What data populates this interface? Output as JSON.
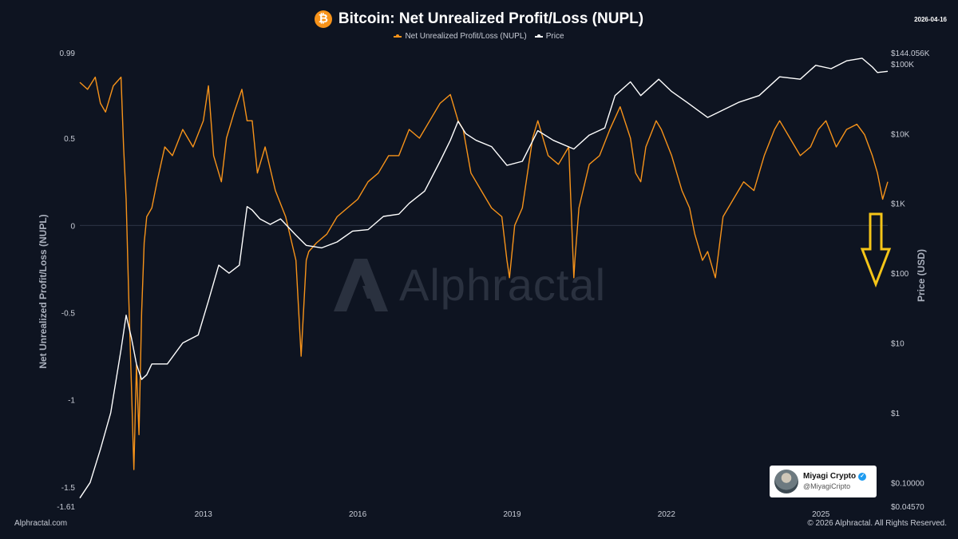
{
  "header": {
    "title": "Bitcoin: Net Unrealized Profit/Loss (NUPL)",
    "icon": "bitcoin-icon",
    "icon_glyph": "₿",
    "date": "2026-04-16"
  },
  "legend": [
    {
      "label": "Net Unrealized Profit/Loss (NUPL)",
      "color": "#f7931a"
    },
    {
      "label": "Price",
      "color": "#ffffff"
    }
  ],
  "watermark": {
    "text": "Alphractal"
  },
  "badge": {
    "name": "Miyagi Crypto",
    "handle": "@MiyagiCripto",
    "verified_icon": "check-icon"
  },
  "footer": {
    "left": "Alphractal.com",
    "right": "© 2026 Alphractal. All Rights Reserved."
  },
  "annotation": {
    "icon": "down-arrow-icon",
    "color": "#f5c518"
  },
  "chart_data": {
    "type": "line",
    "title": "Bitcoin: Net Unrealized Profit/Loss (NUPL)",
    "xlabel": "",
    "ylabel": "Net Unrealized Profit/Loss (NUPL)",
    "y2label": "Price (USD)",
    "xlim": [
      2010.6,
      2026.3
    ],
    "ylim": [
      -1.61,
      0.99
    ],
    "y2_scale": "log",
    "y2lim": [
      0.0457,
      144056
    ],
    "x_ticks": [
      2013,
      2016,
      2019,
      2022,
      2025
    ],
    "y_ticks": [
      {
        "value": 0.99,
        "label": "0.99"
      },
      {
        "value": 0.5,
        "label": "0.5"
      },
      {
        "value": 0,
        "label": "0"
      },
      {
        "value": -0.5,
        "label": "-0.5"
      },
      {
        "value": -1,
        "label": "-1"
      },
      {
        "value": -1.5,
        "label": "-1.5"
      },
      {
        "value": -1.61,
        "label": "-1.61"
      }
    ],
    "y2_ticks": [
      {
        "value": 144056,
        "label": "$144.056K"
      },
      {
        "value": 100000,
        "label": "$100K"
      },
      {
        "value": 10000,
        "label": "$10K"
      },
      {
        "value": 1000,
        "label": "$1K"
      },
      {
        "value": 100,
        "label": "$100"
      },
      {
        "value": 10,
        "label": "$10"
      },
      {
        "value": 1,
        "label": "$1"
      },
      {
        "value": 0.1,
        "label": "$0.10000"
      },
      {
        "value": 0.0457,
        "label": "$0.04570"
      }
    ],
    "grid": false,
    "legend_position": "top-center",
    "series": [
      {
        "name": "Net Unrealized Profit/Loss (NUPL)",
        "color": "#f7931a",
        "axis": "left",
        "x": [
          2010.6,
          2010.75,
          2010.9,
          2011.0,
          2011.1,
          2011.25,
          2011.4,
          2011.45,
          2011.5,
          2011.55,
          2011.6,
          2011.65,
          2011.7,
          2011.75,
          2011.8,
          2011.85,
          2011.9,
          2012.0,
          2012.1,
          2012.25,
          2012.4,
          2012.6,
          2012.8,
          2013.0,
          2013.1,
          2013.2,
          2013.25,
          2013.35,
          2013.45,
          2013.6,
          2013.75,
          2013.85,
          2013.95,
          2014.05,
          2014.2,
          2014.4,
          2014.6,
          2014.8,
          2014.9,
          2015.0,
          2015.05,
          2015.2,
          2015.4,
          2015.6,
          2015.8,
          2016.0,
          2016.2,
          2016.4,
          2016.6,
          2016.8,
          2017.0,
          2017.2,
          2017.4,
          2017.6,
          2017.8,
          2017.95,
          2018.05,
          2018.2,
          2018.4,
          2018.6,
          2018.8,
          2018.9,
          2018.95,
          2019.05,
          2019.2,
          2019.4,
          2019.5,
          2019.7,
          2019.9,
          2020.1,
          2020.2,
          2020.22,
          2020.3,
          2020.5,
          2020.7,
          2020.9,
          2021.1,
          2021.3,
          2021.4,
          2021.5,
          2021.6,
          2021.8,
          2021.9,
          2022.1,
          2022.3,
          2022.45,
          2022.55,
          2022.7,
          2022.8,
          2022.9,
          2022.95,
          2023.1,
          2023.3,
          2023.5,
          2023.7,
          2023.9,
          2024.1,
          2024.2,
          2024.4,
          2024.6,
          2024.8,
          2024.95,
          2025.1,
          2025.3,
          2025.5,
          2025.7,
          2025.85,
          2026.0,
          2026.1,
          2026.2,
          2026.3
        ],
        "values": [
          0.82,
          0.78,
          0.85,
          0.7,
          0.65,
          0.8,
          0.85,
          0.45,
          0.15,
          -0.4,
          -0.9,
          -1.4,
          -0.8,
          -1.2,
          -0.5,
          -0.1,
          0.05,
          0.1,
          0.25,
          0.45,
          0.4,
          0.55,
          0.45,
          0.6,
          0.8,
          0.4,
          0.35,
          0.25,
          0.5,
          0.65,
          0.78,
          0.6,
          0.6,
          0.3,
          0.45,
          0.2,
          0.05,
          -0.2,
          -0.75,
          -0.2,
          -0.15,
          -0.1,
          -0.05,
          0.05,
          0.1,
          0.15,
          0.25,
          0.3,
          0.4,
          0.4,
          0.55,
          0.5,
          0.6,
          0.7,
          0.75,
          0.6,
          0.55,
          0.3,
          0.2,
          0.1,
          0.05,
          -0.2,
          -0.3,
          0.0,
          0.1,
          0.5,
          0.6,
          0.4,
          0.35,
          0.45,
          -0.3,
          -0.2,
          0.1,
          0.35,
          0.4,
          0.55,
          0.68,
          0.5,
          0.3,
          0.25,
          0.45,
          0.6,
          0.55,
          0.4,
          0.2,
          0.1,
          -0.05,
          -0.2,
          -0.15,
          -0.25,
          -0.3,
          0.05,
          0.15,
          0.25,
          0.2,
          0.4,
          0.55,
          0.6,
          0.5,
          0.4,
          0.45,
          0.55,
          0.6,
          0.45,
          0.55,
          0.58,
          0.52,
          0.4,
          0.3,
          0.15,
          0.25
        ]
      },
      {
        "name": "Price",
        "color": "#ffffff",
        "axis": "right",
        "x": [
          2010.6,
          2010.8,
          2011.0,
          2011.2,
          2011.4,
          2011.5,
          2011.6,
          2011.7,
          2011.8,
          2011.9,
          2012.0,
          2012.3,
          2012.6,
          2012.9,
          2013.1,
          2013.3,
          2013.5,
          2013.7,
          2013.85,
          2013.95,
          2014.1,
          2014.3,
          2014.5,
          2014.8,
          2015.0,
          2015.3,
          2015.6,
          2015.9,
          2016.2,
          2016.5,
          2016.8,
          2017.0,
          2017.3,
          2017.6,
          2017.8,
          2017.95,
          2018.1,
          2018.3,
          2018.6,
          2018.9,
          2019.2,
          2019.5,
          2019.8,
          2020.2,
          2020.5,
          2020.8,
          2021.0,
          2021.3,
          2021.5,
          2021.85,
          2022.1,
          2022.4,
          2022.8,
          2023.0,
          2023.4,
          2023.8,
          2024.2,
          2024.6,
          2024.9,
          2025.2,
          2025.5,
          2025.8,
          2026.0,
          2026.1,
          2026.3
        ],
        "values": [
          0.06,
          0.1,
          0.3,
          1,
          8,
          25,
          12,
          5,
          3,
          3.5,
          5,
          5,
          10,
          13,
          40,
          130,
          100,
          130,
          900,
          800,
          600,
          500,
          600,
          350,
          250,
          230,
          280,
          400,
          420,
          650,
          700,
          1000,
          1500,
          4000,
          8000,
          15000,
          10000,
          8000,
          6500,
          3500,
          4000,
          11000,
          8000,
          6000,
          9500,
          12000,
          35000,
          55000,
          35000,
          60000,
          40000,
          28000,
          17000,
          20000,
          28000,
          35000,
          65000,
          60000,
          95000,
          85000,
          110000,
          120000,
          90000,
          75000,
          78000
        ]
      }
    ]
  }
}
